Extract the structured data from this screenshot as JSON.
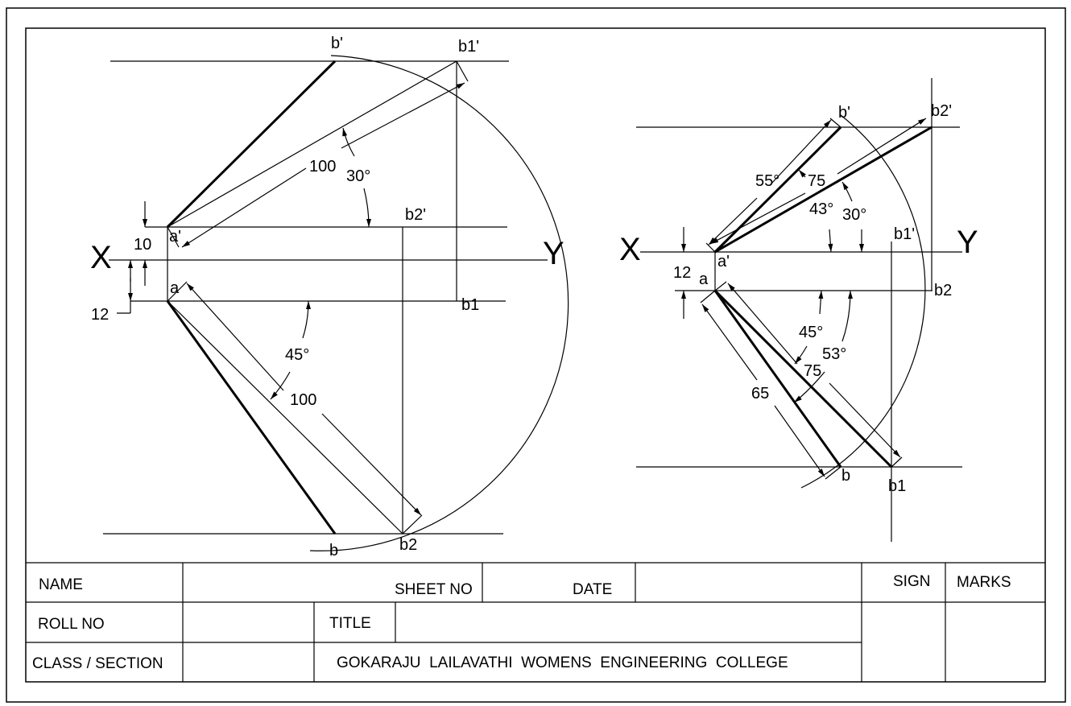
{
  "left_drawing": {
    "axis_x": "X",
    "axis_y": "Y",
    "points": {
      "b_prime": "b'",
      "b1_prime": "b1'",
      "b2_prime": "b2'",
      "a_prime": "a'",
      "a": "a",
      "b1": "b1",
      "b": "b",
      "b2": "b2"
    },
    "dims": {
      "top_length": "100",
      "top_angle": "30°",
      "above_xy": "10",
      "below_xy": "12",
      "bottom_angle": "45°",
      "bottom_length": "100"
    }
  },
  "right_drawing": {
    "axis_x": "X",
    "axis_y": "Y",
    "points": {
      "b_prime": "b'",
      "b2_prime": "b2'",
      "b1_prime": "b1'",
      "a_prime": "a'",
      "a": "a",
      "b2": "b2",
      "b": "b",
      "b1": "b1"
    },
    "dims": {
      "angle_55": "55°",
      "length_75_top": "75",
      "angle_43": "43°",
      "angle_30": "30°",
      "below_xy": "12",
      "angle_45": "45°",
      "angle_53": "53°",
      "length_75_bottom": "75",
      "length_65": "65"
    }
  },
  "title_block": {
    "name_label": "NAME",
    "sheet_no_label": "SHEET NO",
    "date_label": "DATE",
    "sign_label": "SIGN",
    "marks_label": "MARKS",
    "roll_no_label": "ROLL NO",
    "title_label": "TITLE",
    "class_section_label": "CLASS / SECTION",
    "college_name": "GOKARAJU  LAILAVATHI  WOMENS  ENGINEERING  COLLEGE"
  }
}
